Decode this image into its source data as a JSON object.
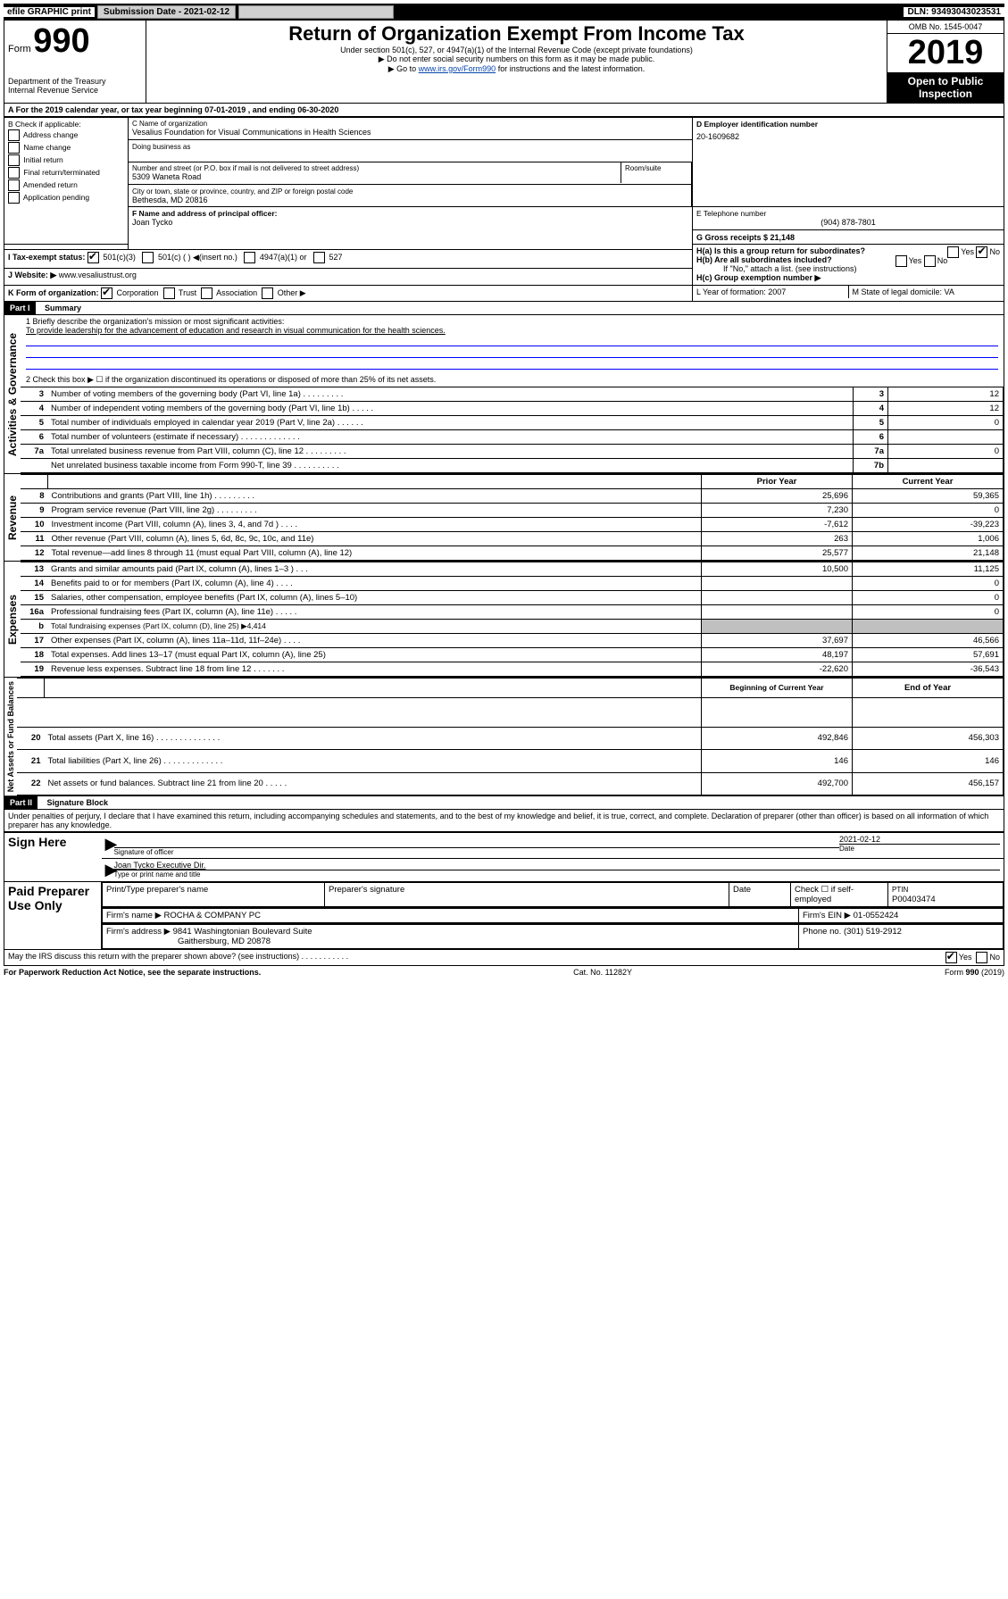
{
  "topbar": {
    "efile": "efile GRAPHIC print",
    "submission_label": "Submission Date - 2021-02-12",
    "dln": "DLN: 93493043023531"
  },
  "header": {
    "form_label": "Form",
    "form_number": "990",
    "dept": "Department of the Treasury\nInternal Revenue Service",
    "title": "Return of Organization Exempt From Income Tax",
    "subtitle": "Under section 501(c), 527, or 4947(a)(1) of the Internal Revenue Code (except private foundations)",
    "note1": "▶ Do not enter social security numbers on this form as it may be made public.",
    "note2_pre": "▶ Go to ",
    "note2_link": "www.irs.gov/Form990",
    "note2_post": " for instructions and the latest information.",
    "omb": "OMB No. 1545-0047",
    "year": "2019",
    "inspection": "Open to Public Inspection"
  },
  "period": {
    "line": "A For the 2019 calendar year, or tax year beginning 07-01-2019    , and ending 06-30-2020"
  },
  "boxB": {
    "title": "B Check if applicable:",
    "items": [
      "Address change",
      "Name change",
      "Initial return",
      "Final return/terminated",
      "Amended return",
      "Application pending"
    ]
  },
  "boxC": {
    "label_name": "C Name of organization",
    "org_name": "Vesalius Foundation for Visual Communications in Health Sciences",
    "dba_label": "Doing business as",
    "addr_label": "Number and street (or P.O. box if mail is not delivered to street address)",
    "room_label": "Room/suite",
    "street": "5309 Waneta Road",
    "city_label": "City or town, state or province, country, and ZIP or foreign postal code",
    "city": "Bethesda, MD  20816"
  },
  "boxD": {
    "label": "D Employer identification number",
    "value": "20-1609682"
  },
  "boxE": {
    "label": "E Telephone number",
    "value": "(904) 878-7801"
  },
  "boxG": {
    "label": "G Gross receipts $ 21,148"
  },
  "boxF": {
    "label": "F  Name and address of principal officer:",
    "value": "Joan Tycko"
  },
  "boxH": {
    "ha": "H(a)  Is this a group return for subordinates?",
    "hb": "H(b)  Are all subordinates included?",
    "hb_note": "If \"No,\" attach a list. (see instructions)",
    "hc": "H(c)  Group exemption number ▶",
    "yes": "Yes",
    "no": "No"
  },
  "boxI": {
    "label": "I  Tax-exempt status:",
    "opts": [
      "501(c)(3)",
      "501(c) (  ) ◀(insert no.)",
      "4947(a)(1) or",
      "527"
    ]
  },
  "boxJ": {
    "label": "J   Website: ▶",
    "value": "www.vesaliustrust.org"
  },
  "boxK": {
    "label": "K Form of organization:",
    "opts": [
      "Corporation",
      "Trust",
      "Association",
      "Other ▶"
    ]
  },
  "boxL": {
    "label": "L Year of formation: 2007"
  },
  "boxM": {
    "label": "M State of legal domicile: VA"
  },
  "part1": {
    "title": "Part I",
    "name": "Summary",
    "q1_label": "1  Briefly describe the organization's mission or most significant activities:",
    "q1_text": "To provide leadership for the advancement of education and research in visual communication for the health sciences.",
    "q2": "2    Check this box ▶ ☐  if the organization discontinued its operations or disposed of more than 25% of its net assets.",
    "rows_top": [
      {
        "n": "3",
        "desc": "Number of voting members of the governing body (Part VI, line 1a)  .    .    .    .    .    .    .    .    .",
        "box": "3",
        "val": "12"
      },
      {
        "n": "4",
        "desc": "Number of independent voting members of the governing body (Part VI, line 1b)   .    .    .    .    .",
        "box": "4",
        "val": "12"
      },
      {
        "n": "5",
        "desc": "Total number of individuals employed in calendar year 2019 (Part V, line 2a)    .    .    .    .    .    .",
        "box": "5",
        "val": "0"
      },
      {
        "n": "6",
        "desc": "Total number of volunteers (estimate if necessary)   .    .    .    .    .    .    .    .    .    .    .    .    .",
        "box": "6",
        "val": ""
      },
      {
        "n": "7a",
        "desc": "Total unrelated business revenue from Part VIII, column (C), line 12   .    .    .    .    .    .    .    .    .",
        "box": "7a",
        "val": "0"
      },
      {
        "n": "",
        "desc": "Net unrelated business taxable income from Form 990-T, line 39   .    .    .    .    .    .    .    .    .    .",
        "box": "7b",
        "val": ""
      }
    ],
    "col_prior": "Prior Year",
    "col_current": "Current Year",
    "revenue": [
      {
        "n": "8",
        "desc": "Contributions and grants (Part VIII, line 1h)   .    .    .    .    .    .    .    .    .",
        "p": "25,696",
        "c": "59,365"
      },
      {
        "n": "9",
        "desc": "Program service revenue (Part VIII, line 2g)    .    .    .    .    .    .    .    .    .",
        "p": "7,230",
        "c": "0"
      },
      {
        "n": "10",
        "desc": "Investment income (Part VIII, column (A), lines 3, 4, and 7d )    .    .    .    .",
        "p": "-7,612",
        "c": "-39,223"
      },
      {
        "n": "11",
        "desc": "Other revenue (Part VIII, column (A), lines 5, 6d, 8c, 9c, 10c, and 11e)",
        "p": "263",
        "c": "1,006"
      },
      {
        "n": "12",
        "desc": "Total revenue—add lines 8 through 11 (must equal Part VIII, column (A), line 12)",
        "p": "25,577",
        "c": "21,148"
      }
    ],
    "expenses": [
      {
        "n": "13",
        "desc": "Grants and similar amounts paid (Part IX, column (A), lines 1–3 )   .    .    .",
        "p": "10,500",
        "c": "11,125"
      },
      {
        "n": "14",
        "desc": "Benefits paid to or for members (Part IX, column (A), line 4)   .    .    .    .",
        "p": "",
        "c": "0"
      },
      {
        "n": "15",
        "desc": "Salaries, other compensation, employee benefits (Part IX, column (A), lines 5–10)",
        "p": "",
        "c": "0"
      },
      {
        "n": "16a",
        "desc": "Professional fundraising fees (Part IX, column (A), line 11e)   .    .    .    .    .",
        "p": "",
        "c": "0"
      },
      {
        "n": "b",
        "desc": "Total fundraising expenses (Part IX, column (D), line 25) ▶4,414",
        "p": "grey",
        "c": "grey"
      },
      {
        "n": "17",
        "desc": "Other expenses (Part IX, column (A), lines 11a–11d, 11f–24e)   .    .    .    .",
        "p": "37,697",
        "c": "46,566"
      },
      {
        "n": "18",
        "desc": "Total expenses. Add lines 13–17 (must equal Part IX, column (A), line 25)",
        "p": "48,197",
        "c": "57,691"
      },
      {
        "n": "19",
        "desc": "Revenue less expenses. Subtract line 18 from line 12    .    .    .    .    .    .    .",
        "p": "-22,620",
        "c": "-36,543"
      }
    ],
    "col_begin": "Beginning of Current Year",
    "col_end": "End of Year",
    "netassets": [
      {
        "n": "20",
        "desc": "Total assets (Part X, line 16)   .    .    .    .    .    .    .    .    .    .    .    .    .    .",
        "p": "492,846",
        "c": "456,303"
      },
      {
        "n": "21",
        "desc": "Total liabilities (Part X, line 26)    .    .    .    .    .    .    .    .    .    .    .    .    .",
        "p": "146",
        "c": "146"
      },
      {
        "n": "22",
        "desc": "Net assets or fund balances. Subtract line 21 from line 20   .    .    .    .    .",
        "p": "492,700",
        "c": "456,157"
      }
    ]
  },
  "part2": {
    "title": "Part II",
    "name": "Signature Block",
    "declaration": "Under penalties of perjury, I declare that I have examined this return, including accompanying schedules and statements, and to the best of my knowledge and belief, it is true, correct, and complete. Declaration of preparer (other than officer) is based on all information of which preparer has any knowledge.",
    "sign_here": "Sign Here",
    "sig_officer": "Signature of officer",
    "sig_date_val": "2021-02-12",
    "sig_date": "Date",
    "officer_name": "Joan Tycko  Executive Dir.",
    "officer_label": "Type or print name and title",
    "paid": "Paid Preparer Use Only",
    "prep_name_label": "Print/Type preparer's name",
    "prep_sig_label": "Preparer's signature",
    "date_label": "Date",
    "self_emp": "Check ☐ if self-employed",
    "ptin_label": "PTIN",
    "ptin": "P00403474",
    "firm_name_label": "Firm's name    ▶",
    "firm_name": "ROCHA & COMPANY PC",
    "firm_ein_label": "Firm's EIN ▶",
    "firm_ein": "01-0552424",
    "firm_addr_label": "Firm's address ▶",
    "firm_addr": "9841 Washingtonian Boulevard Suite",
    "firm_city": "Gaithersburg, MD  20878",
    "phone_label": "Phone no.",
    "phone": "(301) 519-2912",
    "discuss": "May the IRS discuss this return with the preparer shown above? (see instructions)    .    .    .    .    .    .    .    .    .    .    .",
    "yes": "Yes",
    "no": "No"
  },
  "footer": {
    "left": "For Paperwork Reduction Act Notice, see the separate instructions.",
    "mid": "Cat. No. 11282Y",
    "right": "Form 990 (2019)"
  },
  "side_labels": {
    "gov": "Activities & Governance",
    "rev": "Revenue",
    "exp": "Expenses",
    "net": "Net Assets or Fund Balances"
  }
}
